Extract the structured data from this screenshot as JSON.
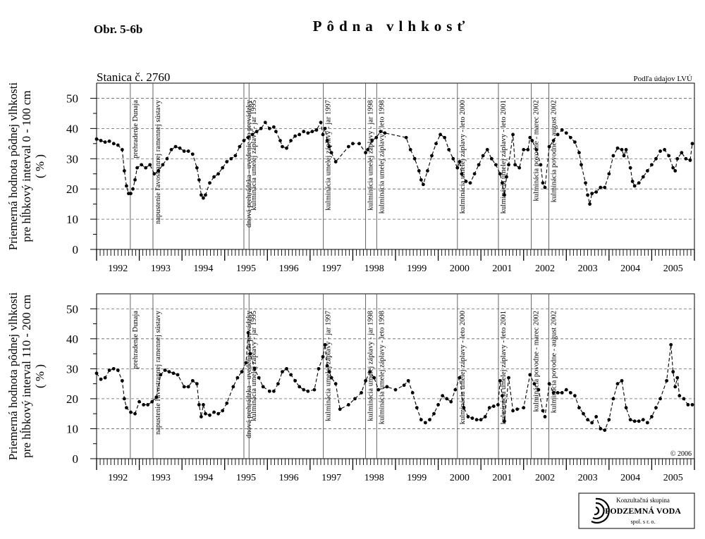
{
  "figure_label": "Obr. 5-6b",
  "title": "Pôdna vlhkosť",
  "logo": {
    "line1": "Konzultačná skupina",
    "line2": "PODZEMNÁ VODA",
    "line3": "spol. s r. o."
  },
  "chart_data": [
    {
      "type": "line",
      "subtitle": "Stanica č. 2760",
      "note": "Podľa údajov LVÚ",
      "ylabel": [
        "Priemerná hodnota pôdnej vlhkosti",
        "pre hĺbkový interval 0 - 100 cm",
        "( % )"
      ],
      "ylim": [
        0,
        55
      ],
      "yticks": [
        0,
        10,
        20,
        30,
        40,
        50
      ],
      "grid": true,
      "xlim": [
        1992,
        2006
      ],
      "xticks": [
        {
          "value": 1992.5,
          "label": "1992"
        },
        {
          "value": 1993.5,
          "label": "1993"
        },
        {
          "value": 1994.5,
          "label": "1994"
        },
        {
          "value": 1995.5,
          "label": "1995"
        },
        {
          "value": 1996.5,
          "label": "1996"
        },
        {
          "value": 1997.5,
          "label": "1997"
        },
        {
          "value": 1998.5,
          "label": "1998"
        },
        {
          "value": 1999.5,
          "label": "1999"
        },
        {
          "value": 2000.5,
          "label": "2000"
        },
        {
          "value": 2001.5,
          "label": "2001"
        },
        {
          "value": 2002.5,
          "label": "2002"
        },
        {
          "value": 2003.5,
          "label": "2003"
        },
        {
          "value": 2004.5,
          "label": "2004"
        },
        {
          "value": 2005.5,
          "label": "2005"
        }
      ],
      "annotations": [
        {
          "x": 1992.79,
          "text": "prehradenie Dunaja"
        },
        {
          "x": 1993.32,
          "text": "napustenie ľavostrannej ramennej sústavy"
        },
        {
          "x": 1995.45,
          "text": "dnová prehrádzka - uvedenie do prevádzky"
        },
        {
          "x": 1995.57,
          "text": "kulminácia umelej záplavy - jar 1995"
        },
        {
          "x": 1997.31,
          "text": "kulminácia umelej záplavy - jar 1997"
        },
        {
          "x": 1998.3,
          "text": "kulminácia umelej záplavy - jar 1998"
        },
        {
          "x": 1998.56,
          "text": "kulminácia umelej záplavy - leto 1998"
        },
        {
          "x": 2000.45,
          "text": "kulminácia umelej záplavy - leto 2000"
        },
        {
          "x": 2001.41,
          "text": "kulminácia umelej záplavy - leto 2001"
        },
        {
          "x": 2002.18,
          "text": "kulminácia povodne - marec 2002"
        },
        {
          "x": 2002.59,
          "text": "kulminácia povodne - august 2002"
        }
      ],
      "series": [
        {
          "color": "#000000",
          "x": [
            1992.0,
            1992.1,
            1992.2,
            1992.3,
            1992.4,
            1992.5,
            1992.6,
            1992.65,
            1992.7,
            1992.75,
            1992.8,
            1992.85,
            1992.9,
            1992.95,
            1993.05,
            1993.15,
            1993.25,
            1993.35,
            1993.45,
            1993.55,
            1993.65,
            1993.75,
            1993.85,
            1993.95,
            1994.05,
            1994.15,
            1994.25,
            1994.35,
            1994.4,
            1994.45,
            1994.5,
            1994.55,
            1994.65,
            1994.75,
            1994.85,
            1994.95,
            1995.05,
            1995.15,
            1995.25,
            1995.35,
            1995.45,
            1995.55,
            1995.65,
            1995.75,
            1995.85,
            1995.95,
            1996.05,
            1996.15,
            1996.2,
            1996.3,
            1996.35,
            1996.45,
            1996.55,
            1996.65,
            1996.75,
            1996.85,
            1996.95,
            1997.05,
            1997.15,
            1997.25,
            1997.3,
            1997.35,
            1997.4,
            1997.45,
            1997.5,
            1997.6,
            1997.9,
            1998.0,
            1998.15,
            1998.3,
            1998.35,
            1998.45,
            1998.55,
            1998.65,
            1998.75,
            1999.25,
            1999.35,
            1999.45,
            1999.55,
            1999.6,
            1999.65,
            1999.75,
            1999.85,
            1999.95,
            2000.05,
            2000.15,
            2000.25,
            2000.35,
            2000.45,
            2000.5,
            2000.55,
            2000.65,
            2000.75,
            2000.85,
            2000.95,
            2001.05,
            2001.15,
            2001.25,
            2001.35,
            2001.45,
            2001.5,
            2001.55,
            2001.6,
            2001.65,
            2001.75,
            2001.8,
            2001.9,
            2002.0,
            2002.1,
            2002.15,
            2002.2,
            2002.3,
            2002.4,
            2002.45,
            2002.5,
            2002.6,
            2002.7,
            2002.8,
            2002.9,
            2003.0,
            2003.1,
            2003.2,
            2003.3,
            2003.35,
            2003.45,
            2003.5,
            2003.55,
            2003.6,
            2003.7,
            2003.8,
            2003.9,
            2004.0,
            2004.1,
            2004.2,
            2004.3,
            2004.35,
            2004.4,
            2004.5,
            2004.55,
            2004.6,
            2004.7,
            2004.8,
            2004.9,
            2005.0,
            2005.1,
            2005.2,
            2005.3,
            2005.4,
            2005.5,
            2005.55,
            2005.6,
            2005.7,
            2005.8,
            2005.9,
            2005.95
          ],
          "values": [
            36.5,
            36,
            35.5,
            35.8,
            35,
            34.5,
            33,
            26,
            21,
            18.5,
            18.5,
            20,
            23,
            27,
            28,
            27,
            28,
            25,
            26,
            28,
            30,
            33,
            34,
            33.5,
            32.5,
            32.5,
            31.5,
            27,
            23,
            18,
            17,
            18,
            22,
            24,
            25,
            27,
            29,
            30,
            31,
            34,
            36,
            37,
            38,
            39,
            40,
            42,
            40,
            40.5,
            39,
            36,
            34,
            33.5,
            36,
            37.5,
            38,
            39,
            38.5,
            39,
            39.5,
            42,
            38,
            40,
            36,
            34,
            32,
            29,
            34,
            35,
            35,
            32,
            33,
            36,
            37,
            39,
            38.5,
            37,
            33,
            30,
            26,
            23,
            21.5,
            26,
            31,
            35,
            38,
            37,
            33,
            30,
            27,
            29,
            25,
            22.5,
            22,
            25,
            28,
            31,
            33,
            30,
            28,
            25,
            22,
            18,
            24,
            28,
            38,
            28,
            27,
            33,
            33,
            37,
            36,
            33,
            28,
            22,
            20.5,
            34,
            36,
            38,
            39.5,
            38.5,
            37,
            35.5,
            32,
            28,
            22,
            18,
            15,
            18.5,
            19,
            20.5,
            20.5,
            25,
            31,
            33.5,
            33,
            31,
            33,
            27,
            22.5,
            21,
            22,
            24,
            26,
            28,
            30,
            32.5,
            33,
            31,
            27,
            26,
            30,
            32,
            30,
            29.5,
            35
          ]
        }
      ]
    },
    {
      "type": "line",
      "note": "© 2006",
      "ylabel": [
        "Priemerná hodnota pôdnej vlhkosti",
        "pre hĺbkový interval 110 - 200 cm",
        "( % )"
      ],
      "ylim": [
        0,
        55
      ],
      "yticks": [
        0,
        10,
        20,
        30,
        40,
        50
      ],
      "grid": true,
      "xlim": [
        1992,
        2006
      ],
      "xticks": [
        {
          "value": 1992.5,
          "label": "1992"
        },
        {
          "value": 1993.5,
          "label": "1993"
        },
        {
          "value": 1994.5,
          "label": "1994"
        },
        {
          "value": 1995.5,
          "label": "1995"
        },
        {
          "value": 1996.5,
          "label": "1996"
        },
        {
          "value": 1997.5,
          "label": "1997"
        },
        {
          "value": 1998.5,
          "label": "1998"
        },
        {
          "value": 1999.5,
          "label": "1999"
        },
        {
          "value": 2000.5,
          "label": "2000"
        },
        {
          "value": 2001.5,
          "label": "2001"
        },
        {
          "value": 2002.5,
          "label": "2002"
        },
        {
          "value": 2003.5,
          "label": "2003"
        },
        {
          "value": 2004.5,
          "label": "2004"
        },
        {
          "value": 2005.5,
          "label": "2005"
        }
      ],
      "annotations": [
        {
          "x": 1992.79,
          "text": "prehradenie Dunaja"
        },
        {
          "x": 1993.32,
          "text": "napustenie ľavostrannej ramennej sústavy"
        },
        {
          "x": 1995.45,
          "text": "dnová prehrádzka - uvedenie do prevádzky"
        },
        {
          "x": 1995.57,
          "text": "kulminácia umelej záplavy - jar 1995"
        },
        {
          "x": 1997.31,
          "text": "kulminácia umelej záplavy - jar 1997"
        },
        {
          "x": 1998.3,
          "text": "kulminácia umelej záplavy - jar 1998"
        },
        {
          "x": 1998.56,
          "text": "kulminácia umelej záplavy - leto 1998"
        },
        {
          "x": 2000.45,
          "text": "kulminácia umelej záplavy - leto 2000"
        },
        {
          "x": 2001.41,
          "text": "kulminácia umelej záplavy - leto 2001"
        },
        {
          "x": 2002.18,
          "text": "kulminácia povodne - marec 2002"
        },
        {
          "x": 2002.59,
          "text": "kulminácia povodne - august 2002"
        }
      ],
      "series": [
        {
          "color": "#000000",
          "x": [
            1992.0,
            1992.1,
            1992.2,
            1992.3,
            1992.4,
            1992.5,
            1992.6,
            1992.65,
            1992.7,
            1992.8,
            1992.9,
            1993.0,
            1993.1,
            1993.2,
            1993.3,
            1993.4,
            1993.5,
            1993.6,
            1993.7,
            1993.8,
            1993.9,
            1994.05,
            1994.15,
            1994.25,
            1994.35,
            1994.4,
            1994.45,
            1994.5,
            1994.55,
            1994.65,
            1994.75,
            1994.85,
            1994.95,
            1995.05,
            1995.2,
            1995.3,
            1995.4,
            1995.5,
            1995.55,
            1995.6,
            1995.7,
            1995.8,
            1995.9,
            1996.05,
            1996.15,
            1996.25,
            1996.35,
            1996.45,
            1996.55,
            1996.65,
            1996.75,
            1996.85,
            1996.95,
            1997.1,
            1997.2,
            1997.3,
            1997.35,
            1997.4,
            1997.45,
            1997.5,
            1997.6,
            1997.7,
            1997.9,
            1998.05,
            1998.2,
            1998.3,
            1998.4,
            1998.5,
            1998.6,
            1998.8,
            1999.0,
            1999.2,
            1999.3,
            1999.4,
            1999.5,
            1999.6,
            1999.7,
            1999.8,
            1999.9,
            2000.0,
            2000.1,
            2000.2,
            2000.3,
            2000.4,
            2000.5,
            2000.6,
            2000.7,
            2000.8,
            2000.9,
            2001.0,
            2001.1,
            2001.2,
            2001.3,
            2001.4,
            2001.45,
            2001.5,
            2001.55,
            2001.65,
            2001.75,
            2001.85,
            2002.0,
            2002.15,
            2002.25,
            2002.35,
            2002.45,
            2002.5,
            2002.6,
            2002.7,
            2002.8,
            2002.9,
            2003.0,
            2003.1,
            2003.2,
            2003.3,
            2003.4,
            2003.5,
            2003.6,
            2003.7,
            2003.8,
            2003.9,
            2004.0,
            2004.1,
            2004.2,
            2004.3,
            2004.4,
            2004.5,
            2004.6,
            2004.7,
            2004.8,
            2004.9,
            2005.0,
            2005.1,
            2005.2,
            2005.35,
            2005.45,
            2005.5,
            2005.55,
            2005.6,
            2005.65,
            2005.75,
            2005.85,
            2005.95
          ],
          "values": [
            28.5,
            26.5,
            27,
            29.5,
            30,
            29.5,
            26,
            20,
            17,
            15.5,
            15,
            19,
            18,
            18,
            19,
            20.5,
            28,
            29.5,
            29,
            28.5,
            28,
            24,
            24,
            26,
            25,
            18,
            14,
            18,
            15,
            14.5,
            15.5,
            15,
            16,
            18.5,
            24,
            27,
            29,
            32,
            42,
            35,
            30,
            27,
            24,
            22.5,
            22.5,
            25,
            29,
            30,
            28,
            26,
            24,
            23,
            22.5,
            23,
            30,
            34,
            38,
            31,
            29,
            27,
            25,
            16.5,
            18,
            20,
            22,
            26,
            29,
            27,
            23,
            24,
            23,
            24.5,
            26,
            22,
            17,
            13,
            12,
            13,
            15,
            18,
            21,
            20,
            19,
            23,
            27,
            17,
            14,
            13.5,
            13,
            13,
            14,
            17,
            17.5,
            18,
            26,
            21,
            12.5,
            27,
            16,
            16.5,
            17,
            28,
            25,
            23,
            16,
            14,
            25,
            22,
            22,
            22,
            23,
            22,
            21,
            17,
            15,
            13,
            12,
            14,
            10,
            9.5,
            13,
            20,
            25,
            26,
            17,
            13,
            12.5,
            12.5,
            13,
            12,
            14,
            17,
            20,
            26,
            38,
            29,
            24,
            27,
            21,
            20,
            18,
            18
          ]
        }
      ]
    }
  ]
}
